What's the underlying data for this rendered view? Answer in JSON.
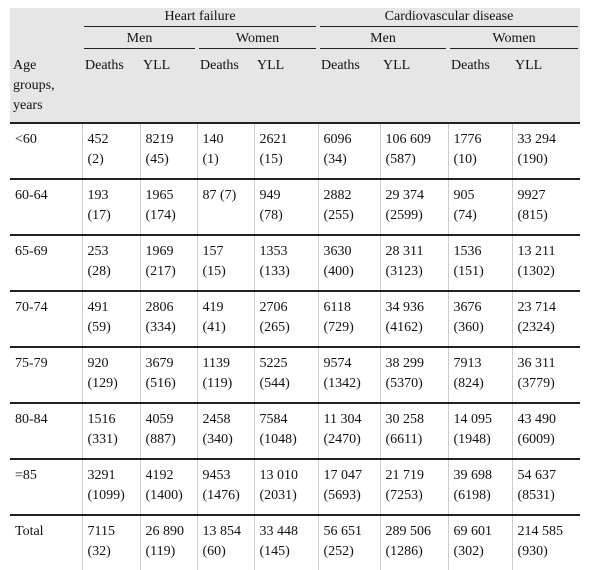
{
  "table": {
    "groups": [
      "Heart failure",
      "Cardiovascular disease"
    ],
    "sexes": [
      "Men",
      "Women",
      "Men",
      "Women"
    ],
    "age_header": "Age groups, years",
    "measures": [
      "Deaths",
      "YLL",
      "Deaths",
      "YLL",
      "Deaths",
      "YLL",
      "Deaths",
      "YLL"
    ],
    "rows": [
      {
        "label": "<60",
        "cells": [
          [
            "452",
            "(2)"
          ],
          [
            "8219",
            "(45)"
          ],
          [
            "140",
            "(1)"
          ],
          [
            "2621",
            "(15)"
          ],
          [
            "6096",
            "(34)"
          ],
          [
            "106 609",
            "(587)"
          ],
          [
            "1776",
            "(10)"
          ],
          [
            "33 294",
            "(190)"
          ]
        ]
      },
      {
        "label": "60-64",
        "cells": [
          [
            "193",
            "(17)"
          ],
          [
            "1965",
            "(174)"
          ],
          [
            "87 (7)"
          ],
          [
            "949",
            "(78)"
          ],
          [
            "2882",
            "(255)"
          ],
          [
            "29 374",
            "(2599)"
          ],
          [
            "905",
            "(74)"
          ],
          [
            "9927",
            "(815)"
          ]
        ]
      },
      {
        "label": "65-69",
        "cells": [
          [
            "253",
            "(28)"
          ],
          [
            "1969",
            "(217)"
          ],
          [
            "157",
            "(15)"
          ],
          [
            "1353",
            "(133)"
          ],
          [
            "3630",
            "(400)"
          ],
          [
            "28 311",
            "(3123)"
          ],
          [
            "1536",
            "(151)"
          ],
          [
            "13 211",
            "(1302)"
          ]
        ]
      },
      {
        "label": "70-74",
        "cells": [
          [
            "491",
            "(59)"
          ],
          [
            "2806",
            "(334)"
          ],
          [
            "419",
            "(41)"
          ],
          [
            "2706",
            "(265)"
          ],
          [
            "6118",
            "(729)"
          ],
          [
            "34 936",
            "(4162)"
          ],
          [
            "3676",
            "(360)"
          ],
          [
            "23 714",
            "(2324)"
          ]
        ]
      },
      {
        "label": "75-79",
        "cells": [
          [
            "920",
            "(129)"
          ],
          [
            "3679",
            "(516)"
          ],
          [
            "1139",
            "(119)"
          ],
          [
            "5225",
            "(544)"
          ],
          [
            "9574",
            "(1342)"
          ],
          [
            "38 299",
            "(5370)"
          ],
          [
            "7913",
            "(824)"
          ],
          [
            "36 311",
            "(3779)"
          ]
        ]
      },
      {
        "label": "80-84",
        "cells": [
          [
            "1516",
            "(331)"
          ],
          [
            "4059",
            "(887)"
          ],
          [
            "2458",
            "(340)"
          ],
          [
            "7584",
            "(1048)"
          ],
          [
            "11 304",
            "(2470)"
          ],
          [
            "30 258",
            "(6611)"
          ],
          [
            "14 095",
            "(1948)"
          ],
          [
            "43 490",
            "(6009)"
          ]
        ]
      },
      {
        "label": "=85",
        "cells": [
          [
            "3291",
            "(1099)"
          ],
          [
            "4192",
            "(1400)"
          ],
          [
            "9453",
            "(1476)"
          ],
          [
            "13 010",
            "(2031)"
          ],
          [
            "17 047",
            "(5693)"
          ],
          [
            "21 719",
            "(7253)"
          ],
          [
            "39 698",
            "(6198)"
          ],
          [
            "54 637",
            "(8531)"
          ]
        ]
      },
      {
        "label": "Total",
        "cells": [
          [
            "7115",
            "(32)"
          ],
          [
            "26 890",
            "(119)"
          ],
          [
            "13 854",
            "(60)"
          ],
          [
            "33 448",
            "(145)"
          ],
          [
            "56 651",
            "(252)"
          ],
          [
            "289 506",
            "(1286)"
          ],
          [
            "69 601",
            "(302)"
          ],
          [
            "214 585",
            "(930)"
          ]
        ]
      }
    ]
  }
}
